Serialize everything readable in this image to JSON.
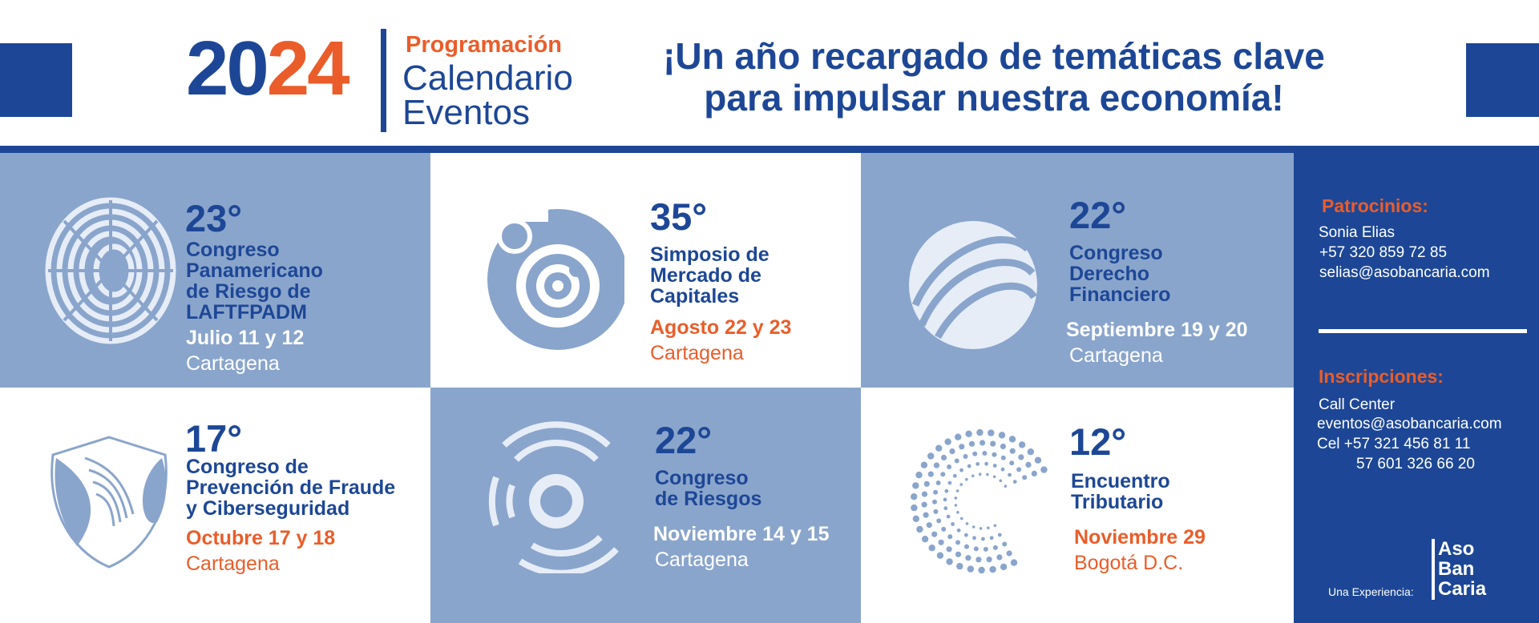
{
  "header": {
    "year_part1": "20",
    "year_part2": "24",
    "programacion": "Programación",
    "title_line1": "Calendario",
    "title_line2": "Eventos",
    "tagline_line1": "¡Un año recargado de temáticas clave",
    "tagline_line2": "para impulsar nuestra economía!"
  },
  "events": [
    {
      "ordinal": "23°",
      "name_lines": [
        "Congreso",
        "Panamericano",
        "de Riesgo de",
        "LAFTFPADM"
      ],
      "date": "Julio 11 y 12",
      "city": "Cartagena",
      "logo": "torus-stripes-icon"
    },
    {
      "ordinal": "35°",
      "name_lines": [
        "Simposio de",
        "Mercado de",
        "Capitales"
      ],
      "date": "Agosto 22 y 23",
      "city": "Cartagena",
      "logo": "spiral-circles-icon"
    },
    {
      "ordinal": "22°",
      "name_lines": [
        "Congreso",
        "Derecho",
        "Financiero"
      ],
      "date": "Septiembre 19 y 20",
      "city": "Cartagena",
      "logo": "ringed-sphere-icon"
    },
    {
      "ordinal": "17°",
      "name_lines": [
        "Congreso de",
        "Prevención de Fraude",
        "y Ciberseguridad"
      ],
      "date": "Octubre 17 y 18",
      "city": "Cartagena",
      "logo": "fingerprint-shield-icon"
    },
    {
      "ordinal": "22°",
      "name_lines": [
        "Congreso",
        "de Riesgos"
      ],
      "date": "Noviembre 14 y 15",
      "city": "Cartagena",
      "logo": "maze-arcs-icon"
    },
    {
      "ordinal": "12°",
      "name_lines": [
        "Encuentro",
        "Tributario"
      ],
      "date": "Noviembre 29",
      "city": "Bogotá D.C.",
      "logo": "dotted-spiral-icon"
    }
  ],
  "contact": {
    "sponsors_heading": "Patrocinios:",
    "sponsor_name": "Sonia Elias",
    "sponsor_phone": "+57 320 859 72 85",
    "sponsor_email": "selias@asobancaria.com",
    "registration_heading": "Inscripciones:",
    "call_center": "Call Center",
    "events_email": "eventos@asobancaria.com",
    "cel_line": "Cel +57 321 456 81 11",
    "landline": "57 601 326 66 20",
    "experience_label": "Una Experiencia:",
    "brand_line1": "Aso",
    "brand_line2": "Ban",
    "brand_line3": "Caria"
  },
  "colors": {
    "brand_blue": "#1d4796",
    "accent_orange": "#ea5d2a",
    "tile_blue": "#8aa5cc",
    "icon_light": "#e6edf7"
  }
}
